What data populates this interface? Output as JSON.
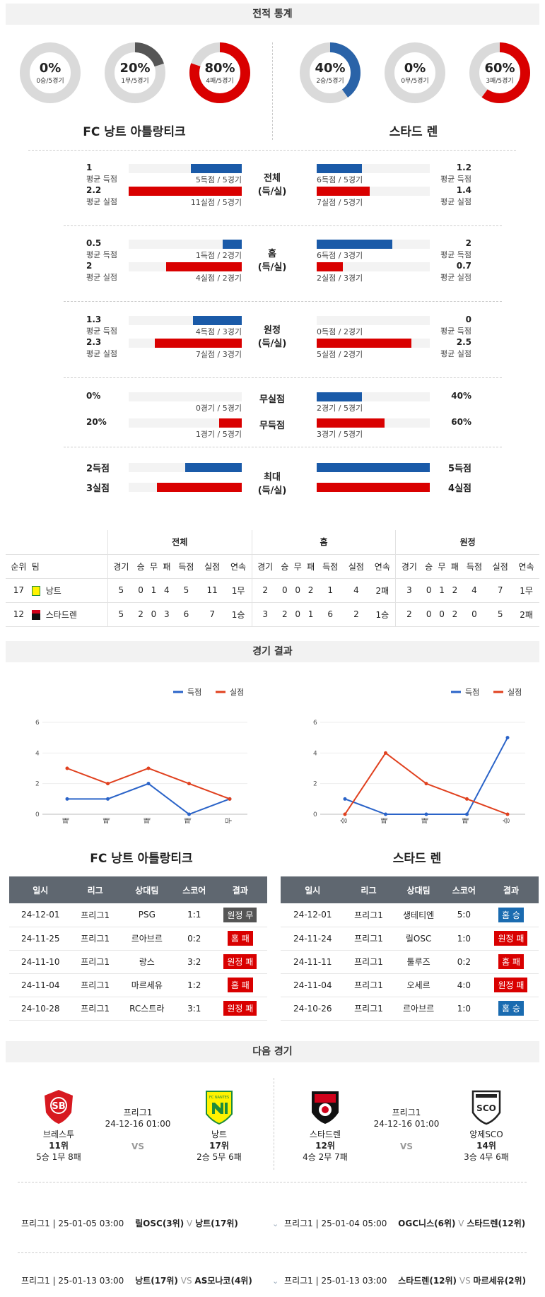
{
  "sections": {
    "stats": "전적 통계",
    "results": "경기 결과",
    "next": "다음 경기"
  },
  "teams": {
    "left": "FC 낭트 아틀랑티크",
    "right": "스타드 렌"
  },
  "donuts": {
    "left": [
      {
        "pct": "0%",
        "sub": "0승/5경기",
        "value": 0,
        "color": "#2a63a8"
      },
      {
        "pct": "20%",
        "sub": "1무/5경기",
        "value": 0.2,
        "color": "#555555"
      },
      {
        "pct": "80%",
        "sub": "4패/5경기",
        "value": 0.8,
        "color": "#d90000"
      }
    ],
    "right": [
      {
        "pct": "40%",
        "sub": "2승/5경기",
        "value": 0.4,
        "color": "#2a63a8"
      },
      {
        "pct": "0%",
        "sub": "0무/5경기",
        "value": 0,
        "color": "#555555"
      },
      {
        "pct": "60%",
        "sub": "3패/5경기",
        "value": 0.6,
        "color": "#d90000"
      }
    ]
  },
  "stat_groups": [
    {
      "label1": "전체",
      "label2": "(득/실)",
      "left": [
        {
          "val": "1",
          "lbl": "평균 득점",
          "bar": "5득점 / 5경기",
          "frac": 0.45,
          "color": "blue"
        },
        {
          "val": "2.2",
          "lbl": "평균 실점",
          "bar": "11실점 / 5경기",
          "frac": 1.0,
          "color": "red"
        }
      ],
      "right": [
        {
          "val": "1.2",
          "lbl": "평균 득점",
          "bar": "6득점 / 5경기",
          "frac": 0.4,
          "color": "blue"
        },
        {
          "val": "1.4",
          "lbl": "평균 실점",
          "bar": "7실점 / 5경기",
          "frac": 0.47,
          "color": "red"
        }
      ]
    },
    {
      "label1": "홈",
      "label2": "(득/실)",
      "left": [
        {
          "val": "0.5",
          "lbl": "평균 득점",
          "bar": "1득점 / 2경기",
          "frac": 0.17,
          "color": "blue"
        },
        {
          "val": "2",
          "lbl": "평균 실점",
          "bar": "4실점 / 2경기",
          "frac": 0.67,
          "color": "red"
        }
      ],
      "right": [
        {
          "val": "2",
          "lbl": "평균 득점",
          "bar": "6득점 / 3경기",
          "frac": 0.67,
          "color": "blue"
        },
        {
          "val": "0.7",
          "lbl": "평균 실점",
          "bar": "2실점 / 3경기",
          "frac": 0.23,
          "color": "red"
        }
      ]
    },
    {
      "label1": "원정",
      "label2": "(득/실)",
      "left": [
        {
          "val": "1.3",
          "lbl": "평균 득점",
          "bar": "4득점 / 3경기",
          "frac": 0.43,
          "color": "blue"
        },
        {
          "val": "2.3",
          "lbl": "평균 실점",
          "bar": "7실점 / 3경기",
          "frac": 0.77,
          "color": "red"
        }
      ],
      "right": [
        {
          "val": "0",
          "lbl": "평균 득점",
          "bar": "0득점 / 2경기",
          "frac": 0,
          "color": "blue"
        },
        {
          "val": "2.5",
          "lbl": "평균 실점",
          "bar": "5실점 / 2경기",
          "frac": 0.84,
          "color": "red"
        }
      ]
    },
    {
      "label1": "무실점",
      "label2": "",
      "left": [
        {
          "val": "0%",
          "lbl": "",
          "bar": "0경기 / 5경기",
          "frac": 0,
          "color": "blue"
        }
      ],
      "right": [
        {
          "val": "40%",
          "lbl": "",
          "bar": "2경기 / 5경기",
          "frac": 0.4,
          "color": "blue"
        }
      ]
    },
    {
      "label1": "무득점",
      "label2": "",
      "left": [
        {
          "val": "20%",
          "lbl": "",
          "bar": "1경기 / 5경기",
          "frac": 0.2,
          "color": "red"
        }
      ],
      "right": [
        {
          "val": "60%",
          "lbl": "",
          "bar": "3경기 / 5경기",
          "frac": 0.6,
          "color": "red"
        }
      ]
    },
    {
      "label1": "최대",
      "label2": "(득/실)",
      "left": [
        {
          "val": "2득점",
          "lbl": "",
          "bar": "",
          "frac": 0.5,
          "color": "blue"
        },
        {
          "val": "3실점",
          "lbl": "",
          "bar": "",
          "frac": 0.75,
          "color": "red"
        }
      ],
      "right": [
        {
          "val": "5득점",
          "lbl": "",
          "bar": "",
          "frac": 1.0,
          "color": "blue"
        },
        {
          "val": "4실점",
          "lbl": "",
          "bar": "",
          "frac": 1.0,
          "color": "red"
        }
      ]
    }
  ],
  "standings": {
    "groups": [
      "전체",
      "홈",
      "원정"
    ],
    "headers": [
      "순위",
      "팀",
      "경기",
      "승",
      "무",
      "패",
      "득점",
      "실점",
      "연속",
      "경기",
      "승",
      "무",
      "패",
      "득점",
      "실점",
      "연속",
      "경기",
      "승",
      "무",
      "패",
      "득점",
      "실점",
      "연속"
    ],
    "rows": [
      [
        "17",
        "낭트",
        "5",
        "0",
        "1",
        "4",
        "5",
        "11",
        "1무",
        "2",
        "0",
        "0",
        "2",
        "1",
        "4",
        "2패",
        "3",
        "0",
        "1",
        "2",
        "4",
        "7",
        "1무"
      ],
      [
        "12",
        "스타드렌",
        "5",
        "2",
        "0",
        "3",
        "6",
        "7",
        "1승",
        "3",
        "2",
        "0",
        "1",
        "6",
        "2",
        "1승",
        "2",
        "0",
        "0",
        "2",
        "0",
        "5",
        "2패"
      ]
    ]
  },
  "chart_data": [
    {
      "type": "line",
      "categories": [
        "패",
        "패",
        "패",
        "패",
        "무"
      ],
      "series": [
        {
          "name": "득점",
          "values": [
            1,
            1,
            2,
            0,
            1
          ],
          "color": "#2a63c8"
        },
        {
          "name": "실점",
          "values": [
            3,
            2,
            3,
            2,
            1
          ],
          "color": "#e0401e"
        }
      ],
      "yticks": [
        "0",
        "2",
        "4",
        "6"
      ],
      "ylim": [
        0,
        6
      ],
      "legend": "top-right"
    },
    {
      "type": "line",
      "categories": [
        "승",
        "패",
        "패",
        "패",
        "승"
      ],
      "series": [
        {
          "name": "득점",
          "values": [
            1,
            0,
            0,
            0,
            5
          ],
          "color": "#2a63c8"
        },
        {
          "name": "실점",
          "values": [
            0,
            4,
            2,
            1,
            0
          ],
          "color": "#e0401e"
        }
      ],
      "yticks": [
        "0",
        "2",
        "4",
        "6"
      ],
      "ylim": [
        0,
        6
      ],
      "legend": "top-right"
    }
  ],
  "results": {
    "headers": [
      "일시",
      "리그",
      "상대팀",
      "스코어",
      "결과"
    ],
    "left": [
      [
        "24-12-01",
        "프리그1",
        "PSG",
        "1:1",
        "원정 무",
        "gray"
      ],
      [
        "24-11-25",
        "프리그1",
        "르아브르",
        "0:2",
        "홈 패",
        "red"
      ],
      [
        "24-11-10",
        "프리그1",
        "랑스",
        "3:2",
        "원정 패",
        "red"
      ],
      [
        "24-11-04",
        "프리그1",
        "마르세유",
        "1:2",
        "홈 패",
        "red"
      ],
      [
        "24-10-28",
        "프리그1",
        "RC스트라",
        "3:1",
        "원정 패",
        "red"
      ]
    ],
    "right": [
      [
        "24-12-01",
        "프리그1",
        "생테티엔",
        "5:0",
        "홈 승",
        "blue"
      ],
      [
        "24-11-24",
        "프리그1",
        "릴OSC",
        "1:0",
        "원정 패",
        "red"
      ],
      [
        "24-11-11",
        "프리그1",
        "툴루즈",
        "0:2",
        "홈 패",
        "red"
      ],
      [
        "24-11-04",
        "프리그1",
        "오세르",
        "4:0",
        "원정 패",
        "red"
      ],
      [
        "24-10-26",
        "프리그1",
        "르아브르",
        "1:0",
        "홈 승",
        "blue"
      ]
    ]
  },
  "next_matches": [
    {
      "league": "프리그1",
      "datetime": "24-12-16 01:00",
      "vs": "VS",
      "home": {
        "name": "브레스투",
        "rank": "11위",
        "record": "5승 1무 8패"
      },
      "away": {
        "name": "낭트",
        "rank": "17위",
        "record": "2승 5무 6패"
      }
    },
    {
      "league": "프리그1",
      "datetime": "24-12-16 01:00",
      "vs": "VS",
      "home": {
        "name": "스타드렌",
        "rank": "12위",
        "record": "4승 2무 7패"
      },
      "away": {
        "name": "앙제SCO",
        "rank": "14위",
        "record": "3승 4무 6패"
      }
    }
  ],
  "crest_text": {
    "brest": "SB",
    "nantes": "FC NANTES",
    "angers": "SCO"
  },
  "fixtures": [
    {
      "left": "프리그1 | 25-01-05 03:00",
      "home": "릴OSC(3위)",
      "vs": "V",
      "away": "낭트(17위)"
    },
    {
      "left": "프리그1 | 25-01-04 05:00",
      "home": "OGC니스(6위)",
      "vs": "V",
      "away": "스타드렌(12위)"
    },
    {
      "left": "프리그1 | 25-01-13 03:00",
      "home": "낭트(17위)",
      "vs": "VS",
      "away": "AS모나코(4위)"
    },
    {
      "left": "프리그1 | 25-01-13 03:00",
      "home": "스타드렌(12위)",
      "vs": "VS",
      "away": "마르세유(2위)"
    }
  ]
}
